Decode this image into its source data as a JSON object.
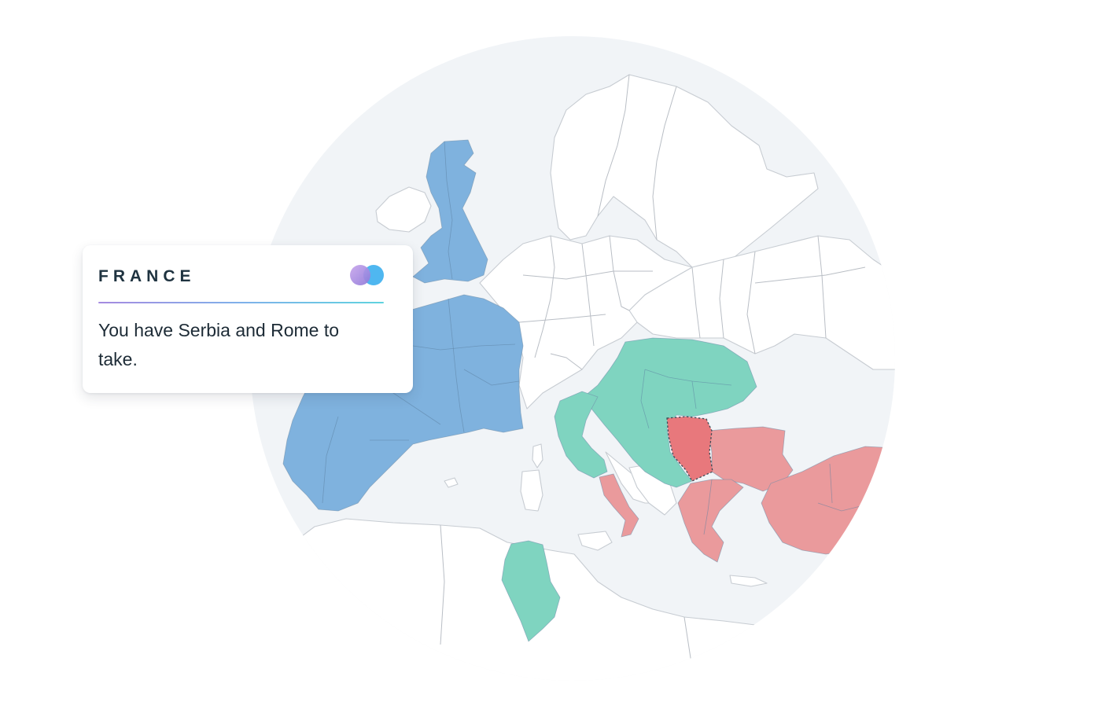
{
  "card": {
    "title": "FRANCE",
    "message": "You have Serbia and Rome to take."
  },
  "map": {
    "factions": [
      {
        "name": "blue",
        "color": "#7fb2de"
      },
      {
        "name": "green",
        "color": "#7fd4c0"
      },
      {
        "name": "red",
        "color": "#ea9a9c"
      }
    ],
    "highlight_color": "#e8787c"
  },
  "logo": {
    "left_color": "#a98ce2",
    "right_color": "#4fb7f0"
  }
}
